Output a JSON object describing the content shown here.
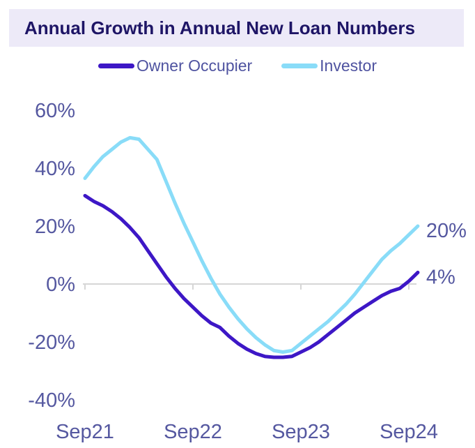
{
  "title": "Annual Growth in Annual New Loan Numbers",
  "legend": {
    "items": [
      {
        "label": "Owner Occupier",
        "color": "#3d17c6"
      },
      {
        "label": "Investor",
        "color": "#89dcf8"
      }
    ]
  },
  "colors": {
    "title_text": "#1e1566",
    "title_background": "#edeaf8",
    "axis_label_text": "#5558a0",
    "axis_line": "#d6d6d6",
    "owner_occupier_line": "#3d17c6",
    "investor_line": "#89dcf8",
    "page_background": "#ffffff"
  },
  "chart_data": {
    "type": "line",
    "title": "Annual Growth in Annual New Loan Numbers",
    "frequency": "monthly",
    "x_start_label": "Sep21",
    "x_tick_labels": [
      "Sep21",
      "Sep22",
      "Sep23",
      "Sep24"
    ],
    "x_tick_month_index": [
      0,
      12,
      24,
      36
    ],
    "y_tick_labels": [
      "60%",
      "40%",
      "20%",
      "0%",
      "-20%",
      "-40%"
    ],
    "y_tick_values": [
      60,
      40,
      20,
      0,
      -20,
      -40
    ],
    "ylim": [
      -40,
      60
    ],
    "grid": false,
    "legend_position": "top",
    "series": [
      {
        "name": "Investor",
        "color": "#89dcf8",
        "end_label": "20%",
        "values": [
          36.5,
          40.5,
          44,
          46.5,
          49,
          50.5,
          50,
          46.5,
          43,
          35.5,
          28,
          21,
          14.5,
          8,
          2,
          -3.5,
          -8,
          -12,
          -15.5,
          -18.5,
          -21,
          -23,
          -23.5,
          -23,
          -20.5,
          -18,
          -15.5,
          -13,
          -10,
          -7,
          -3.5,
          0.5,
          4.5,
          8.5,
          11.5,
          14,
          17,
          20
        ]
      },
      {
        "name": "Owner Occupier",
        "color": "#3d17c6",
        "end_label": "4%",
        "values": [
          30.5,
          28.5,
          27,
          25,
          22.5,
          19.5,
          16,
          11.5,
          7,
          2.5,
          -1.5,
          -5,
          -8,
          -11,
          -13.5,
          -15,
          -18,
          -20.5,
          -22.5,
          -24,
          -25,
          -25.3,
          -25.3,
          -25,
          -23.5,
          -22,
          -20,
          -17.5,
          -15,
          -12.5,
          -10,
          -8,
          -6,
          -4,
          -2.5,
          -1.5,
          1,
          4
        ]
      }
    ]
  }
}
